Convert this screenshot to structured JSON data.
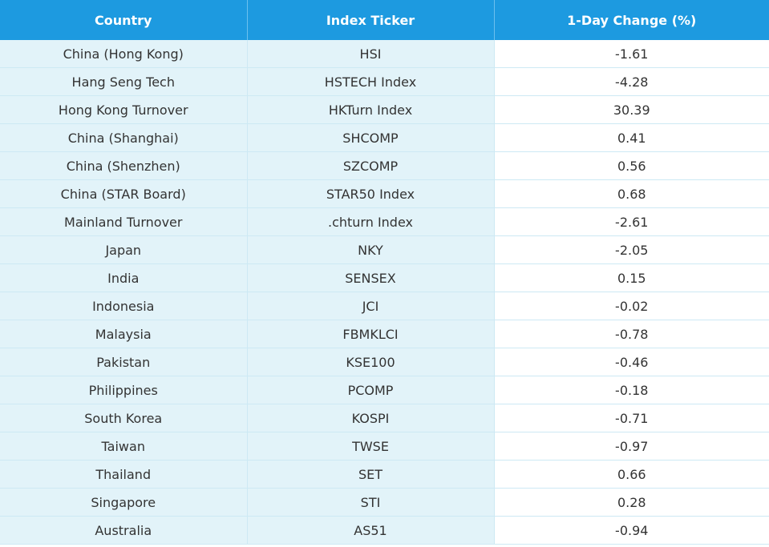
{
  "table": {
    "header": [
      "Country",
      "Index Ticker",
      "1-Day Change (%)"
    ],
    "rows": [
      [
        "China (Hong Kong)",
        "HSI",
        "-1.61"
      ],
      [
        "Hang Seng Tech",
        "HSTECH Index",
        "-4.28"
      ],
      [
        "Hong Kong Turnover",
        "HKTurn Index",
        "30.39"
      ],
      [
        "China (Shanghai)",
        "SHCOMP",
        "0.41"
      ],
      [
        "China (Shenzhen)",
        "SZCOMP",
        "0.56"
      ],
      [
        "China (STAR Board)",
        "STAR50 Index",
        "0.68"
      ],
      [
        "Mainland Turnover",
        ".chturn Index",
        "-2.61"
      ],
      [
        "Japan",
        "NKY",
        "-2.05"
      ],
      [
        "India",
        "SENSEX",
        "0.15"
      ],
      [
        "Indonesia",
        "JCI",
        "-0.02"
      ],
      [
        "Malaysia",
        "FBMKLCI",
        "-0.78"
      ],
      [
        "Pakistan",
        "KSE100",
        "-0.46"
      ],
      [
        "Philippines",
        "PCOMP",
        "-0.18"
      ],
      [
        "South Korea",
        "KOSPI",
        "-0.71"
      ],
      [
        "Taiwan",
        "TWSE",
        "-0.97"
      ],
      [
        "Thailand",
        "SET",
        "0.66"
      ],
      [
        "Singapore",
        "STI",
        "0.28"
      ],
      [
        "Australia",
        "AS51",
        "-0.94"
      ]
    ]
  }
}
